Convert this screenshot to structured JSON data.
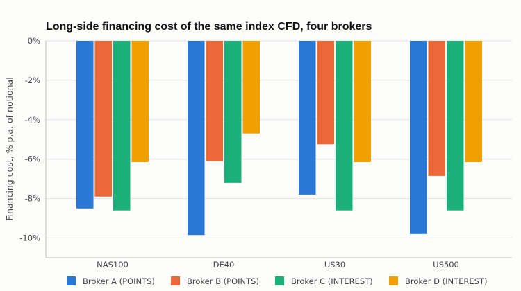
{
  "chart_data": {
    "type": "bar",
    "title": "Long-side financing cost of the same index CFD, four brokers",
    "xlabel": "",
    "ylabel": "Financing cost, % p.a. of notional",
    "categories": [
      "NAS100",
      "DE40",
      "US30",
      "US500"
    ],
    "ylim": [
      -11,
      0
    ],
    "yticks": [
      0,
      -2,
      -4,
      -6,
      -8,
      -10
    ],
    "ytick_labels": [
      "0%",
      "-2%",
      "-4%",
      "-6%",
      "-8%",
      "-10%"
    ],
    "grid": true,
    "legend_position": "bottom",
    "series": [
      {
        "name": "Broker A (POINTS)",
        "color": "#2a78d6",
        "values": [
          -8.5,
          -9.85,
          -7.8,
          -9.8
        ]
      },
      {
        "name": "Broker B (POINTS)",
        "color": "#ec6838",
        "values": [
          -7.9,
          -6.1,
          -5.25,
          -6.85
        ]
      },
      {
        "name": "Broker C (INTEREST)",
        "color": "#1aaf7b",
        "values": [
          -8.6,
          -7.2,
          -8.6,
          -8.6
        ]
      },
      {
        "name": "Broker D (INTEREST)",
        "color": "#f0a000",
        "values": [
          -6.15,
          -4.7,
          -6.15,
          -6.15
        ]
      }
    ]
  }
}
